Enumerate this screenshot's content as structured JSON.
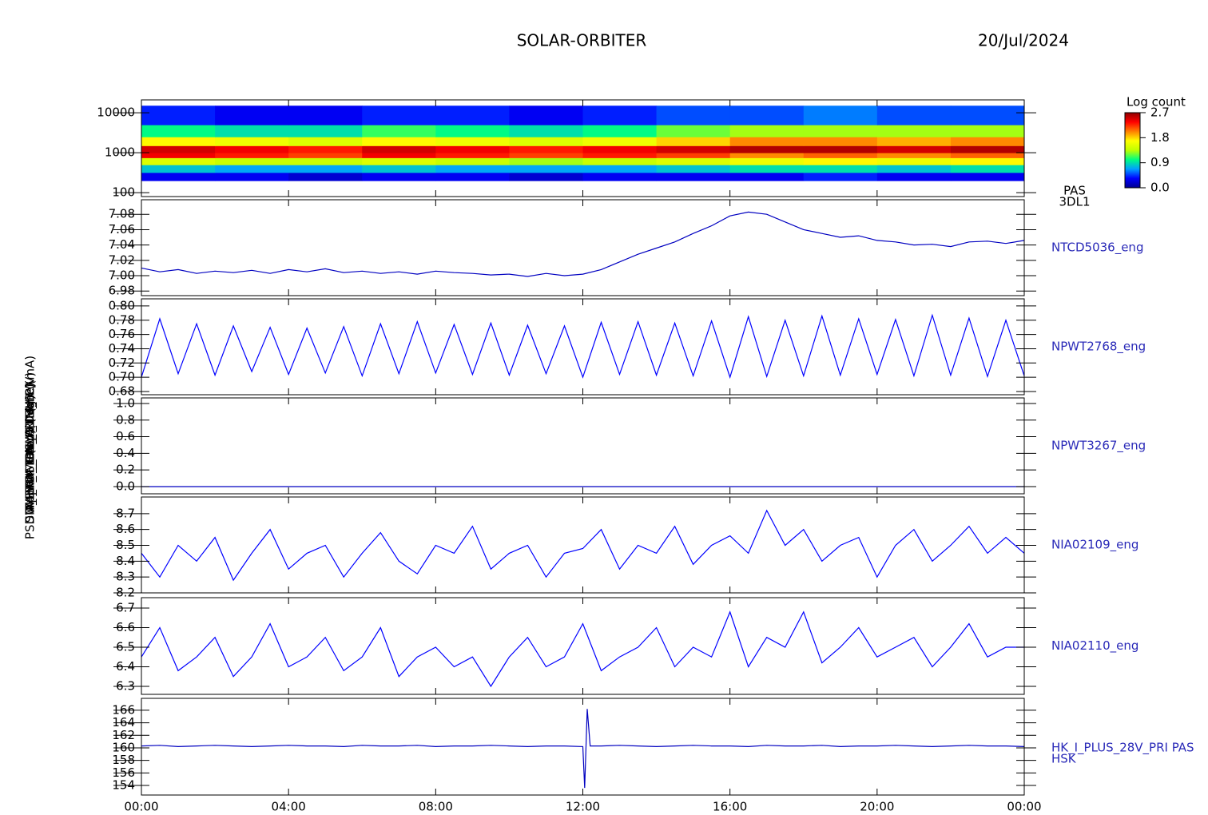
{
  "chart_data": [
    {
      "type": "heatmap",
      "title": "SOLAR-ORBITER",
      "date": "20/Jul/2024",
      "ylabel": "E (eV)",
      "labels": [
        "PAS",
        "3DL1"
      ],
      "xlim": [
        0,
        24
      ],
      "log_y": true,
      "ylim": [
        80,
        21000
      ],
      "yticks": [
        100,
        1000,
        10000
      ],
      "x": [
        0,
        2,
        4,
        6,
        8,
        10,
        12,
        14,
        16,
        18,
        20,
        22,
        24
      ],
      "y": [
        200,
        320,
        500,
        750,
        1000,
        1500,
        2500,
        5000,
        15000
      ],
      "z": [
        [
          0.3,
          0.3,
          0.2,
          0.3,
          0.3,
          0.2,
          0.3,
          0.3,
          0.3,
          0.4,
          0.3,
          0.3
        ],
        [
          0.8,
          0.7,
          0.7,
          0.8,
          0.7,
          0.7,
          0.7,
          0.8,
          0.9,
          0.9,
          0.8,
          0.9
        ],
        [
          1.5,
          1.4,
          1.4,
          1.5,
          1.4,
          1.3,
          1.4,
          1.5,
          1.6,
          1.7,
          1.6,
          1.7
        ],
        [
          2.4,
          2.3,
          2.2,
          2.4,
          2.3,
          2.2,
          2.3,
          2.2,
          2.0,
          2.1,
          2.0,
          2.1
        ],
        [
          2.5,
          2.4,
          2.3,
          2.5,
          2.4,
          2.3,
          2.4,
          2.5,
          2.6,
          2.6,
          2.5,
          2.6
        ],
        [
          1.7,
          1.6,
          1.5,
          1.7,
          1.6,
          1.5,
          1.6,
          1.8,
          2.0,
          2.0,
          1.9,
          2.0
        ],
        [
          1.0,
          0.9,
          0.9,
          1.1,
          1.0,
          0.9,
          1.0,
          1.2,
          1.3,
          1.3,
          1.3,
          1.3
        ],
        [
          0.4,
          0.3,
          0.3,
          0.4,
          0.4,
          0.3,
          0.4,
          0.5,
          0.5,
          0.6,
          0.5,
          0.5
        ]
      ],
      "colorbar_title": "Log count",
      "clim": [
        0,
        2.7
      ],
      "cticks": [
        {
          "value": 0,
          "label": "0.0"
        },
        0.9,
        1.8,
        2.7
      ],
      "colors": [
        "#000090",
        "#0000ff",
        "#00a0ff",
        "#00ff80",
        "#c0ff00",
        "#ffff00",
        "#ff8000",
        "#ff0000",
        "#900000"
      ]
    },
    {
      "type": "line",
      "ylabel": "Approx Temp (Deg C)",
      "xlim": [
        0,
        24
      ],
      "ylim": [
        6.974,
        7.099
      ],
      "yticks": [
        {
          "value": 6.98,
          "label": "6.98"
        },
        {
          "value": 7.0,
          "label": "7.00"
        },
        {
          "value": 7.02,
          "label": "7.02"
        },
        {
          "value": 7.04,
          "label": "7.04"
        },
        {
          "value": 7.06,
          "label": "7.06"
        },
        {
          "value": 7.08,
          "label": "7.08"
        }
      ],
      "x": [
        0,
        0.5,
        1,
        1.5,
        2,
        2.5,
        3,
        3.5,
        4,
        4.5,
        5,
        5.5,
        6,
        6.5,
        7,
        7.5,
        8,
        8.5,
        9,
        9.5,
        10,
        10.5,
        11,
        11.5,
        12,
        12.5,
        13,
        13.5,
        14,
        14.5,
        15,
        15.5,
        16,
        16.5,
        17,
        17.5,
        18,
        18.5,
        19,
        19.5,
        20,
        20.5,
        21,
        21.5,
        22,
        22.5,
        23,
        23.5,
        24
      ],
      "series": [
        {
          "name": "NTCD5036_eng",
          "color": "#0000c0",
          "values": [
            7.01,
            7.005,
            7.008,
            7.003,
            7.006,
            7.004,
            7.007,
            7.003,
            7.008,
            7.005,
            7.009,
            7.004,
            7.006,
            7.003,
            7.005,
            7.002,
            7.006,
            7.004,
            7.003,
            7.001,
            7.002,
            6.999,
            7.003,
            7.0,
            7.002,
            7.008,
            7.018,
            7.028,
            7.036,
            7.044,
            7.055,
            7.065,
            7.078,
            7.083,
            7.08,
            7.07,
            7.06,
            7.055,
            7.05,
            7.052,
            7.046,
            7.044,
            7.04,
            7.041,
            7.038,
            7.044,
            7.045,
            7.042,
            7.046
          ]
        }
      ]
    },
    {
      "type": "line",
      "ylabel": "SWA_TDS_RSW_TEMP (V)",
      "xlim": [
        0,
        24
      ],
      "ylim": [
        0.6755,
        0.81
      ],
      "yticks": [
        {
          "value": 0.68,
          "label": "0.68"
        },
        {
          "value": 0.7,
          "label": "0.70"
        },
        {
          "value": 0.72,
          "label": "0.72"
        },
        {
          "value": 0.74,
          "label": "0.74"
        },
        {
          "value": 0.76,
          "label": "0.76"
        },
        {
          "value": 0.78,
          "label": "0.78"
        },
        {
          "value": 0.8,
          "label": "0.80"
        }
      ],
      "x": [
        0,
        0.5,
        1,
        1.5,
        2,
        2.5,
        3,
        3.5,
        4,
        4.5,
        5,
        5.5,
        6,
        6.5,
        7,
        7.5,
        8,
        8.5,
        9,
        9.5,
        10,
        10.5,
        11,
        11.5,
        12,
        12.5,
        13,
        13.5,
        14,
        14.5,
        15,
        15.5,
        16,
        16.5,
        17,
        17.5,
        18,
        18.5,
        19,
        19.5,
        20,
        20.5,
        21,
        21.5,
        22,
        22.5,
        23,
        23.5,
        24
      ],
      "series": [
        {
          "name": "NPWT2768_eng",
          "color": "#0000ff",
          "values": [
            0.7,
            0.782,
            0.705,
            0.775,
            0.703,
            0.772,
            0.708,
            0.77,
            0.704,
            0.769,
            0.706,
            0.771,
            0.702,
            0.775,
            0.705,
            0.778,
            0.706,
            0.774,
            0.704,
            0.776,
            0.703,
            0.773,
            0.705,
            0.772,
            0.7,
            0.777,
            0.704,
            0.778,
            0.703,
            0.776,
            0.702,
            0.779,
            0.7,
            0.785,
            0.701,
            0.78,
            0.702,
            0.786,
            0.703,
            0.782,
            0.704,
            0.781,
            0.702,
            0.787,
            0.703,
            0.783,
            0.701,
            0.78,
            0.702
          ]
        }
      ]
    },
    {
      "type": "line",
      "ylabel": "SWA_TDS_ALT (V)",
      "xlim": [
        0,
        24
      ],
      "ylim": [
        -0.087,
        1.067
      ],
      "yticks": [
        {
          "value": 0,
          "label": "0.0"
        },
        0.2,
        0.4,
        0.6,
        0.8,
        {
          "value": 1,
          "label": "1.0"
        }
      ],
      "x": [
        0,
        0.5,
        1,
        1.5,
        2,
        2.5,
        3,
        3.5,
        4,
        4.5,
        5,
        5.5,
        6,
        6.5,
        7,
        7.5,
        8,
        8.5,
        9,
        9.5,
        10,
        10.5,
        11,
        11.5,
        12,
        12.5,
        13,
        13.5,
        14,
        14.5,
        15,
        15.5,
        16,
        16.5,
        17,
        17.5,
        18,
        18.5,
        19,
        19.5,
        20,
        20.5,
        21,
        21.5,
        22,
        22.5,
        23,
        23.5,
        24
      ],
      "series": [
        {
          "name": "NPWT3267_eng",
          "color": "#0000c0",
          "values": [
            0,
            0,
            0,
            0,
            0,
            0,
            0,
            0,
            0,
            0,
            0,
            0,
            0,
            0,
            0,
            0,
            0,
            0,
            0,
            0,
            0,
            0,
            0,
            0,
            0,
            0,
            0,
            0,
            0,
            0,
            0,
            0,
            0,
            0,
            0,
            0,
            0,
            0,
            0,
            0,
            0,
            0,
            0,
            0,
            0,
            0,
            0,
            0,
            0
          ]
        }
      ]
    },
    {
      "type": "line",
      "ylabel": "THERM_CAL_1 (None)",
      "xlim": [
        0,
        24
      ],
      "ylim": [
        8.2,
        8.805
      ],
      "yticks": [
        8.2,
        8.3,
        8.4,
        8.5,
        8.6,
        8.7
      ],
      "x": [
        0,
        0.5,
        1,
        1.5,
        2,
        2.5,
        3,
        3.5,
        4,
        4.5,
        5,
        5.5,
        6,
        6.5,
        7,
        7.5,
        8,
        8.5,
        9,
        9.5,
        10,
        10.5,
        11,
        11.5,
        12,
        12.5,
        13,
        13.5,
        14,
        14.5,
        15,
        15.5,
        16,
        16.5,
        17,
        17.5,
        18,
        18.5,
        19,
        19.5,
        20,
        20.5,
        21,
        21.5,
        22,
        22.5,
        23,
        23.5,
        24
      ],
      "series": [
        {
          "name": "NIA02109_eng",
          "color": "#0000ff",
          "values": [
            8.45,
            8.3,
            8.5,
            8.4,
            8.55,
            8.28,
            8.45,
            8.6,
            8.35,
            8.45,
            8.5,
            8.3,
            8.45,
            8.58,
            8.4,
            8.32,
            8.5,
            8.45,
            8.62,
            8.35,
            8.45,
            8.5,
            8.3,
            8.45,
            8.48,
            8.6,
            8.35,
            8.5,
            8.45,
            8.62,
            8.38,
            8.5,
            8.56,
            8.45,
            8.72,
            8.5,
            8.6,
            8.4,
            8.5,
            8.55,
            8.3,
            8.5,
            8.6,
            8.4,
            8.5,
            8.62,
            8.45,
            8.55,
            8.45
          ]
        }
      ]
    },
    {
      "type": "line",
      "ylabel": "THERM_CAL_2 (None)",
      "xlim": [
        0,
        24
      ],
      "ylim": [
        6.259,
        6.753
      ],
      "yticks": [
        6.3,
        6.4,
        6.5,
        6.6,
        6.7
      ],
      "x": [
        0,
        0.5,
        1,
        1.5,
        2,
        2.5,
        3,
        3.5,
        4,
        4.5,
        5,
        5.5,
        6,
        6.5,
        7,
        7.5,
        8,
        8.5,
        9,
        9.5,
        10,
        10.5,
        11,
        11.5,
        12,
        12.5,
        13,
        13.5,
        14,
        14.5,
        15,
        15.5,
        16,
        16.5,
        17,
        17.5,
        18,
        18.5,
        19,
        19.5,
        20,
        20.5,
        21,
        21.5,
        22,
        22.5,
        23,
        23.5,
        24
      ],
      "series": [
        {
          "name": "NIA02110_eng",
          "color": "#0000ff",
          "values": [
            6.45,
            6.6,
            6.38,
            6.45,
            6.55,
            6.35,
            6.45,
            6.62,
            6.4,
            6.45,
            6.55,
            6.38,
            6.45,
            6.6,
            6.35,
            6.45,
            6.5,
            6.4,
            6.45,
            6.3,
            6.45,
            6.55,
            6.4,
            6.45,
            6.62,
            6.38,
            6.45,
            6.5,
            6.6,
            6.4,
            6.5,
            6.45,
            6.68,
            6.4,
            6.55,
            6.5,
            6.68,
            6.42,
            6.5,
            6.6,
            6.45,
            6.5,
            6.55,
            6.4,
            6.5,
            6.62,
            6.45,
            6.5,
            6.5
          ]
        }
      ]
    },
    {
      "type": "line",
      "ylabel": "PSDM_HK_IMON_PRIM_LP (mA)",
      "labels": [
        "HK_I_PLUS_28V_PRI PAS",
        "HSK"
      ],
      "xlim": [
        0,
        24
      ],
      "ylim": [
        152.47,
        167.9
      ],
      "yticks": [
        154,
        156,
        158,
        160,
        162,
        164,
        166
      ],
      "xticks": [
        {
          "value": 0,
          "label": "00:00"
        },
        {
          "value": 4,
          "label": "04:00"
        },
        {
          "value": 8,
          "label": "08:00"
        },
        {
          "value": 12,
          "label": "12:00"
        },
        {
          "value": 16,
          "label": "16:00"
        },
        {
          "value": 20,
          "label": "20:00"
        },
        {
          "value": 24,
          "label": "00:00"
        }
      ],
      "x": [
        0,
        0.5,
        1,
        1.5,
        2,
        2.5,
        3,
        3.5,
        4,
        4.5,
        5,
        5.5,
        6,
        6.5,
        7,
        7.5,
        8,
        8.5,
        9,
        9.5,
        10,
        10.5,
        11,
        11.5,
        12,
        12.05,
        12.12,
        12.2,
        12.5,
        13,
        13.5,
        14,
        14.5,
        15,
        15.5,
        16,
        16.5,
        17,
        17.5,
        18,
        18.5,
        19,
        19.5,
        20,
        20.5,
        21,
        21.5,
        22,
        22.5,
        23,
        23.5,
        24
      ],
      "series": [
        {
          "name": "HK_I_PLUS_28V_PRI PAS",
          "color": "#0000c0",
          "values": [
            160.3,
            160.4,
            160.2,
            160.3,
            160.4,
            160.3,
            160.2,
            160.3,
            160.4,
            160.3,
            160.3,
            160.2,
            160.4,
            160.3,
            160.3,
            160.4,
            160.2,
            160.3,
            160.3,
            160.4,
            160.3,
            160.2,
            160.3,
            160.3,
            160.2,
            153.6,
            166.2,
            160.3,
            160.3,
            160.4,
            160.3,
            160.2,
            160.3,
            160.4,
            160.3,
            160.3,
            160.2,
            160.4,
            160.3,
            160.3,
            160.4,
            160.2,
            160.3,
            160.3,
            160.4,
            160.3,
            160.2,
            160.3,
            160.4,
            160.3,
            160.3,
            160.2
          ]
        }
      ]
    }
  ]
}
